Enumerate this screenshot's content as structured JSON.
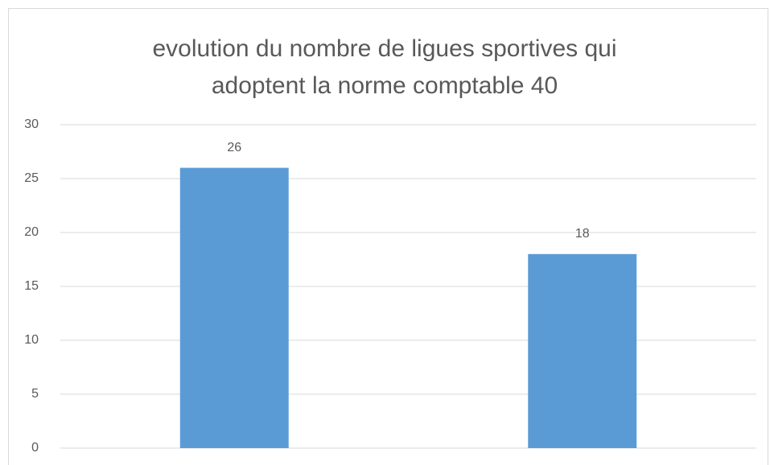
{
  "chart_data": {
    "type": "bar",
    "title": "evolution du nombre de ligues sportives qui adoptent la norme comptable 40",
    "categories": [
      null,
      null
    ],
    "values": [
      26,
      18
    ],
    "color": "#5b9bd5",
    "ylim": [
      0,
      30
    ],
    "yticks": [
      0,
      5,
      10,
      15,
      20,
      25,
      30
    ],
    "grid": true
  }
}
